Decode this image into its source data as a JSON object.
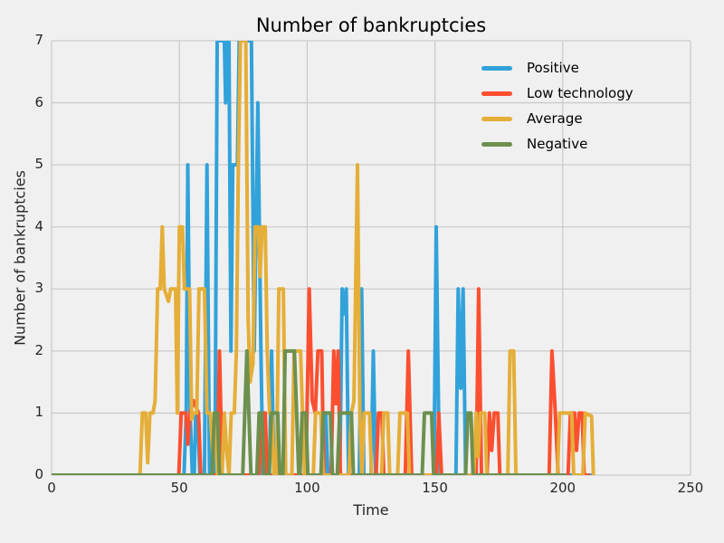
{
  "chart_data": {
    "type": "line",
    "title": "Number of bankruptcies",
    "xlabel": "Time",
    "ylabel": "Number of bankruptcies",
    "xlim": [
      0,
      250
    ],
    "ylim": [
      0,
      7
    ],
    "xticks": [
      0,
      50,
      100,
      150,
      200,
      250
    ],
    "yticks": [
      0,
      1,
      2,
      3,
      4,
      5,
      6,
      7
    ],
    "grid": true,
    "grid_color": "#cbcbcb",
    "background_color": "#f0f0f0",
    "line_width": 4,
    "legend_position": "upper right",
    "series": [
      {
        "name": "Positive",
        "color": "#31a2da",
        "points": [
          [
            0,
            0
          ],
          [
            51.8,
            0
          ],
          [
            52.7,
            1
          ],
          [
            53.3,
            5
          ],
          [
            54.2,
            1
          ],
          [
            55.1,
            0
          ],
          [
            55.8,
            0
          ],
          [
            56.4,
            1
          ],
          [
            57.2,
            1
          ],
          [
            58,
            0
          ],
          [
            59.8,
            0
          ],
          [
            60.8,
            5
          ],
          [
            61.8,
            0
          ],
          [
            63.9,
            0
          ],
          [
            64.8,
            7
          ],
          [
            67.6,
            7
          ],
          [
            68.1,
            6
          ],
          [
            68.7,
            7
          ],
          [
            69.4,
            7
          ],
          [
            70.2,
            2
          ],
          [
            70.9,
            5
          ],
          [
            72.7,
            5
          ],
          [
            73.4,
            7
          ],
          [
            78.2,
            7
          ],
          [
            79.3,
            2
          ],
          [
            80.7,
            6
          ],
          [
            81.9,
            2
          ],
          [
            82.7,
            0
          ],
          [
            85.2,
            0
          ],
          [
            86.1,
            2
          ],
          [
            87,
            0
          ],
          [
            106.5,
            0
          ],
          [
            107.3,
            1
          ],
          [
            108.1,
            0
          ],
          [
            112.8,
            0
          ],
          [
            113.7,
            3
          ],
          [
            114.5,
            2.6
          ],
          [
            115.3,
            3
          ],
          [
            116.2,
            0
          ],
          [
            120.4,
            0
          ],
          [
            121.3,
            3
          ],
          [
            122.2,
            0
          ],
          [
            125,
            0
          ],
          [
            125.9,
            2
          ],
          [
            126.8,
            0
          ],
          [
            149.6,
            0
          ],
          [
            150.5,
            4
          ],
          [
            151.4,
            1
          ],
          [
            152.2,
            0
          ],
          [
            158.2,
            0
          ],
          [
            159.1,
            3
          ],
          [
            160.1,
            1.4
          ],
          [
            161,
            3
          ],
          [
            162,
            0
          ],
          [
            212,
            0
          ]
        ]
      },
      {
        "name": "Low technology",
        "color": "#fc4f30",
        "points": [
          [
            0,
            0
          ],
          [
            49.8,
            0
          ],
          [
            50.7,
            1
          ],
          [
            52.5,
            1
          ],
          [
            53.3,
            0.5
          ],
          [
            54.2,
            1
          ],
          [
            55.5,
            1.2
          ],
          [
            57.5,
            1
          ],
          [
            58.4,
            0
          ],
          [
            64.8,
            0
          ],
          [
            65.7,
            2
          ],
          [
            66.8,
            0
          ],
          [
            81.2,
            0
          ],
          [
            82.1,
            1
          ],
          [
            83.6,
            1
          ],
          [
            84.4,
            0
          ],
          [
            99.5,
            0
          ],
          [
            100.8,
            3
          ],
          [
            102,
            1.2
          ],
          [
            103.2,
            1
          ],
          [
            104.2,
            2
          ],
          [
            105.7,
            2
          ],
          [
            106.5,
            0
          ],
          [
            109.4,
            0
          ],
          [
            110.4,
            2
          ],
          [
            111.3,
            1.15
          ],
          [
            112.1,
            2
          ],
          [
            113,
            0
          ],
          [
            127,
            0
          ],
          [
            127.9,
            1
          ],
          [
            129.2,
            1
          ],
          [
            130,
            0
          ],
          [
            138.4,
            0
          ],
          [
            139.6,
            2
          ],
          [
            140.9,
            0
          ],
          [
            150.6,
            0
          ],
          [
            151.5,
            1
          ],
          [
            152.6,
            0
          ],
          [
            166.1,
            0
          ],
          [
            167.1,
            3
          ],
          [
            168.2,
            0
          ],
          [
            170.4,
            0
          ],
          [
            171.3,
            1
          ],
          [
            172.2,
            0.4
          ],
          [
            173.2,
            1
          ],
          [
            174.6,
            1
          ],
          [
            175.4,
            0
          ],
          [
            194.7,
            0
          ],
          [
            195.8,
            2
          ],
          [
            197.1,
            1
          ],
          [
            198.2,
            0
          ],
          [
            202.1,
            0
          ],
          [
            203,
            1
          ],
          [
            204.6,
            1
          ],
          [
            205.4,
            0.4
          ],
          [
            206.4,
            1
          ],
          [
            207.6,
            1
          ],
          [
            208.4,
            0
          ],
          [
            210,
            0
          ]
        ]
      },
      {
        "name": "Average",
        "color": "#e5ae38",
        "points": [
          [
            0,
            0
          ],
          [
            34.6,
            0
          ],
          [
            35.5,
            1
          ],
          [
            36.8,
            1
          ],
          [
            37.6,
            0.2
          ],
          [
            38.5,
            1
          ],
          [
            39.7,
            1
          ],
          [
            40.5,
            1.2
          ],
          [
            41.5,
            3
          ],
          [
            42.5,
            3
          ],
          [
            43.3,
            4
          ],
          [
            44.1,
            3
          ],
          [
            44.9,
            2.9
          ],
          [
            45.7,
            2.8
          ],
          [
            46.6,
            3
          ],
          [
            48.5,
            3
          ],
          [
            49.2,
            1
          ],
          [
            50,
            4
          ],
          [
            51.2,
            4
          ],
          [
            52,
            3
          ],
          [
            54,
            3
          ],
          [
            54.8,
            0.9
          ],
          [
            55.5,
            1
          ],
          [
            56.8,
            1
          ],
          [
            57.7,
            3
          ],
          [
            59.8,
            3
          ],
          [
            60.8,
            1
          ],
          [
            62.1,
            1
          ],
          [
            63,
            0.4
          ],
          [
            63.9,
            1
          ],
          [
            64.9,
            0
          ],
          [
            66.7,
            0
          ],
          [
            67.6,
            1
          ],
          [
            68.5,
            0.4
          ],
          [
            69.4,
            0
          ],
          [
            70.3,
            1
          ],
          [
            71.5,
            1
          ],
          [
            72.3,
            2
          ],
          [
            73.1,
            5
          ],
          [
            73.9,
            7
          ],
          [
            76,
            7
          ],
          [
            76.9,
            2.5
          ],
          [
            77.7,
            1.5
          ],
          [
            78.8,
            1.8
          ],
          [
            79.6,
            4
          ],
          [
            80.9,
            4
          ],
          [
            81.6,
            3.2
          ],
          [
            82.4,
            4
          ],
          [
            83.6,
            4
          ],
          [
            84.4,
            2
          ],
          [
            85.3,
            1
          ],
          [
            86.2,
            1
          ],
          [
            87,
            0
          ],
          [
            88,
            0
          ],
          [
            88.9,
            3
          ],
          [
            90.7,
            3
          ],
          [
            91.6,
            0
          ],
          [
            94,
            0
          ],
          [
            94.9,
            2
          ],
          [
            97.4,
            2
          ],
          [
            98.2,
            1
          ],
          [
            99,
            0
          ],
          [
            102.4,
            0
          ],
          [
            103.3,
            1
          ],
          [
            105.4,
            1
          ],
          [
            106.2,
            0
          ],
          [
            116.4,
            0
          ],
          [
            117.3,
            1
          ],
          [
            118.3,
            1.2
          ],
          [
            119.7,
            5
          ],
          [
            120.6,
            1
          ],
          [
            121.4,
            0
          ],
          [
            121.5,
            0
          ],
          [
            122.3,
            1
          ],
          [
            124.4,
            1
          ],
          [
            125.2,
            0
          ],
          [
            129.1,
            0
          ],
          [
            130,
            1
          ],
          [
            131.5,
            1
          ],
          [
            132.3,
            0
          ],
          [
            135.4,
            0
          ],
          [
            136.3,
            1
          ],
          [
            139.2,
            1
          ],
          [
            140,
            0
          ],
          [
            165.2,
            0
          ],
          [
            166.1,
            1
          ],
          [
            166.9,
            0.3
          ],
          [
            167.8,
            1
          ],
          [
            169.5,
            1
          ],
          [
            170.3,
            0
          ],
          [
            178.5,
            0
          ],
          [
            179.4,
            2
          ],
          [
            180.8,
            2
          ],
          [
            181.7,
            0
          ],
          [
            197.9,
            0
          ],
          [
            198.8,
            1
          ],
          [
            203.5,
            1
          ],
          [
            204.3,
            0
          ],
          [
            207.9,
            0
          ],
          [
            208.8,
            1
          ],
          [
            211.3,
            0.95
          ],
          [
            212,
            0
          ]
        ]
      },
      {
        "name": "Negative",
        "color": "#6d904f",
        "points": [
          [
            0,
            0
          ],
          [
            62.8,
            0
          ],
          [
            63.7,
            1
          ],
          [
            64.9,
            1
          ],
          [
            65.7,
            0
          ],
          [
            74.8,
            0
          ],
          [
            75.6,
            1
          ],
          [
            76.4,
            2
          ],
          [
            77.2,
            1
          ],
          [
            78,
            0
          ],
          [
            80.3,
            0
          ],
          [
            81.2,
            1
          ],
          [
            82.3,
            1
          ],
          [
            83.1,
            0
          ],
          [
            85.1,
            0
          ],
          [
            86,
            1
          ],
          [
            88.5,
            1
          ],
          [
            89.3,
            0
          ],
          [
            90.5,
            0
          ],
          [
            91.4,
            2
          ],
          [
            95,
            2
          ],
          [
            95.9,
            1
          ],
          [
            96.7,
            0
          ],
          [
            97.2,
            0
          ],
          [
            98,
            1
          ],
          [
            99.5,
            1
          ],
          [
            100.3,
            0
          ],
          [
            105.4,
            0
          ],
          [
            106.3,
            1
          ],
          [
            109.1,
            1
          ],
          [
            109.9,
            0
          ],
          [
            111.8,
            0
          ],
          [
            112.7,
            1
          ],
          [
            117.3,
            1
          ],
          [
            118.1,
            0
          ],
          [
            145,
            0
          ],
          [
            145.9,
            1
          ],
          [
            148.7,
            1
          ],
          [
            149.5,
            0
          ],
          [
            162,
            0
          ],
          [
            162.9,
            1
          ],
          [
            164.1,
            1
          ],
          [
            164.9,
            0
          ],
          [
            201,
            0
          ]
        ]
      }
    ]
  }
}
